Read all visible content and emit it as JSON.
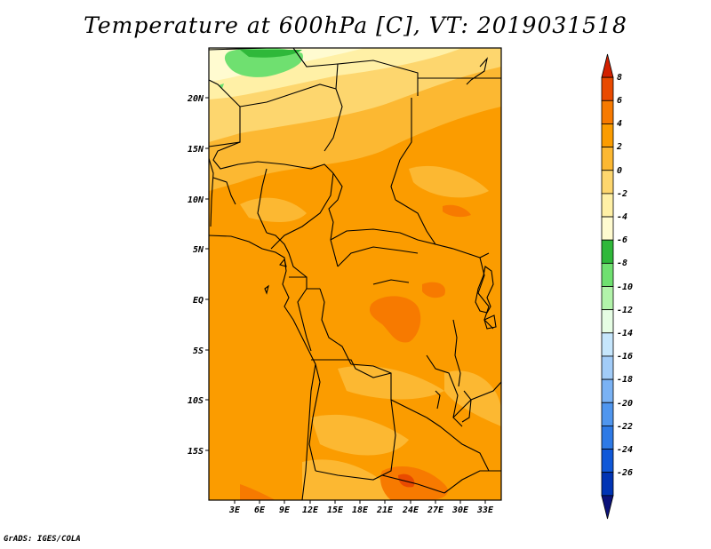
{
  "title": "Temperature at 600hPa [C], VT: 2019031518",
  "credit": "GrADS: IGES/COLA",
  "lat_labels": [
    "20N",
    "15N",
    "10N",
    "5N",
    "EQ",
    "5S",
    "10S",
    "15S"
  ],
  "lon_labels": [
    "3E",
    "6E",
    "9E",
    "12E",
    "15E",
    "18E",
    "21E",
    "24E",
    "27E",
    "30E",
    "33E"
  ],
  "colorbar": {
    "labels": [
      "8",
      "6",
      "4",
      "2",
      "0",
      "-2",
      "-4",
      "-6",
      "-8",
      "-10",
      "-12",
      "-14",
      "-16",
      "-18",
      "-20",
      "-22",
      "-24",
      "-26"
    ],
    "colors": [
      "#d22000",
      "#e94a00",
      "#f77a00",
      "#fb9c00",
      "#fcb832",
      "#fdd66e",
      "#fff0a6",
      "#fffbd0",
      "#2fb83a",
      "#6fe070",
      "#b2f3aa",
      "#e6fde4",
      "#c6e6fc",
      "#a2ccf8",
      "#7ab2f4",
      "#5096ee",
      "#2e7ae6",
      "#1058d8",
      "#0034b4",
      "#0b127a"
    ]
  }
}
